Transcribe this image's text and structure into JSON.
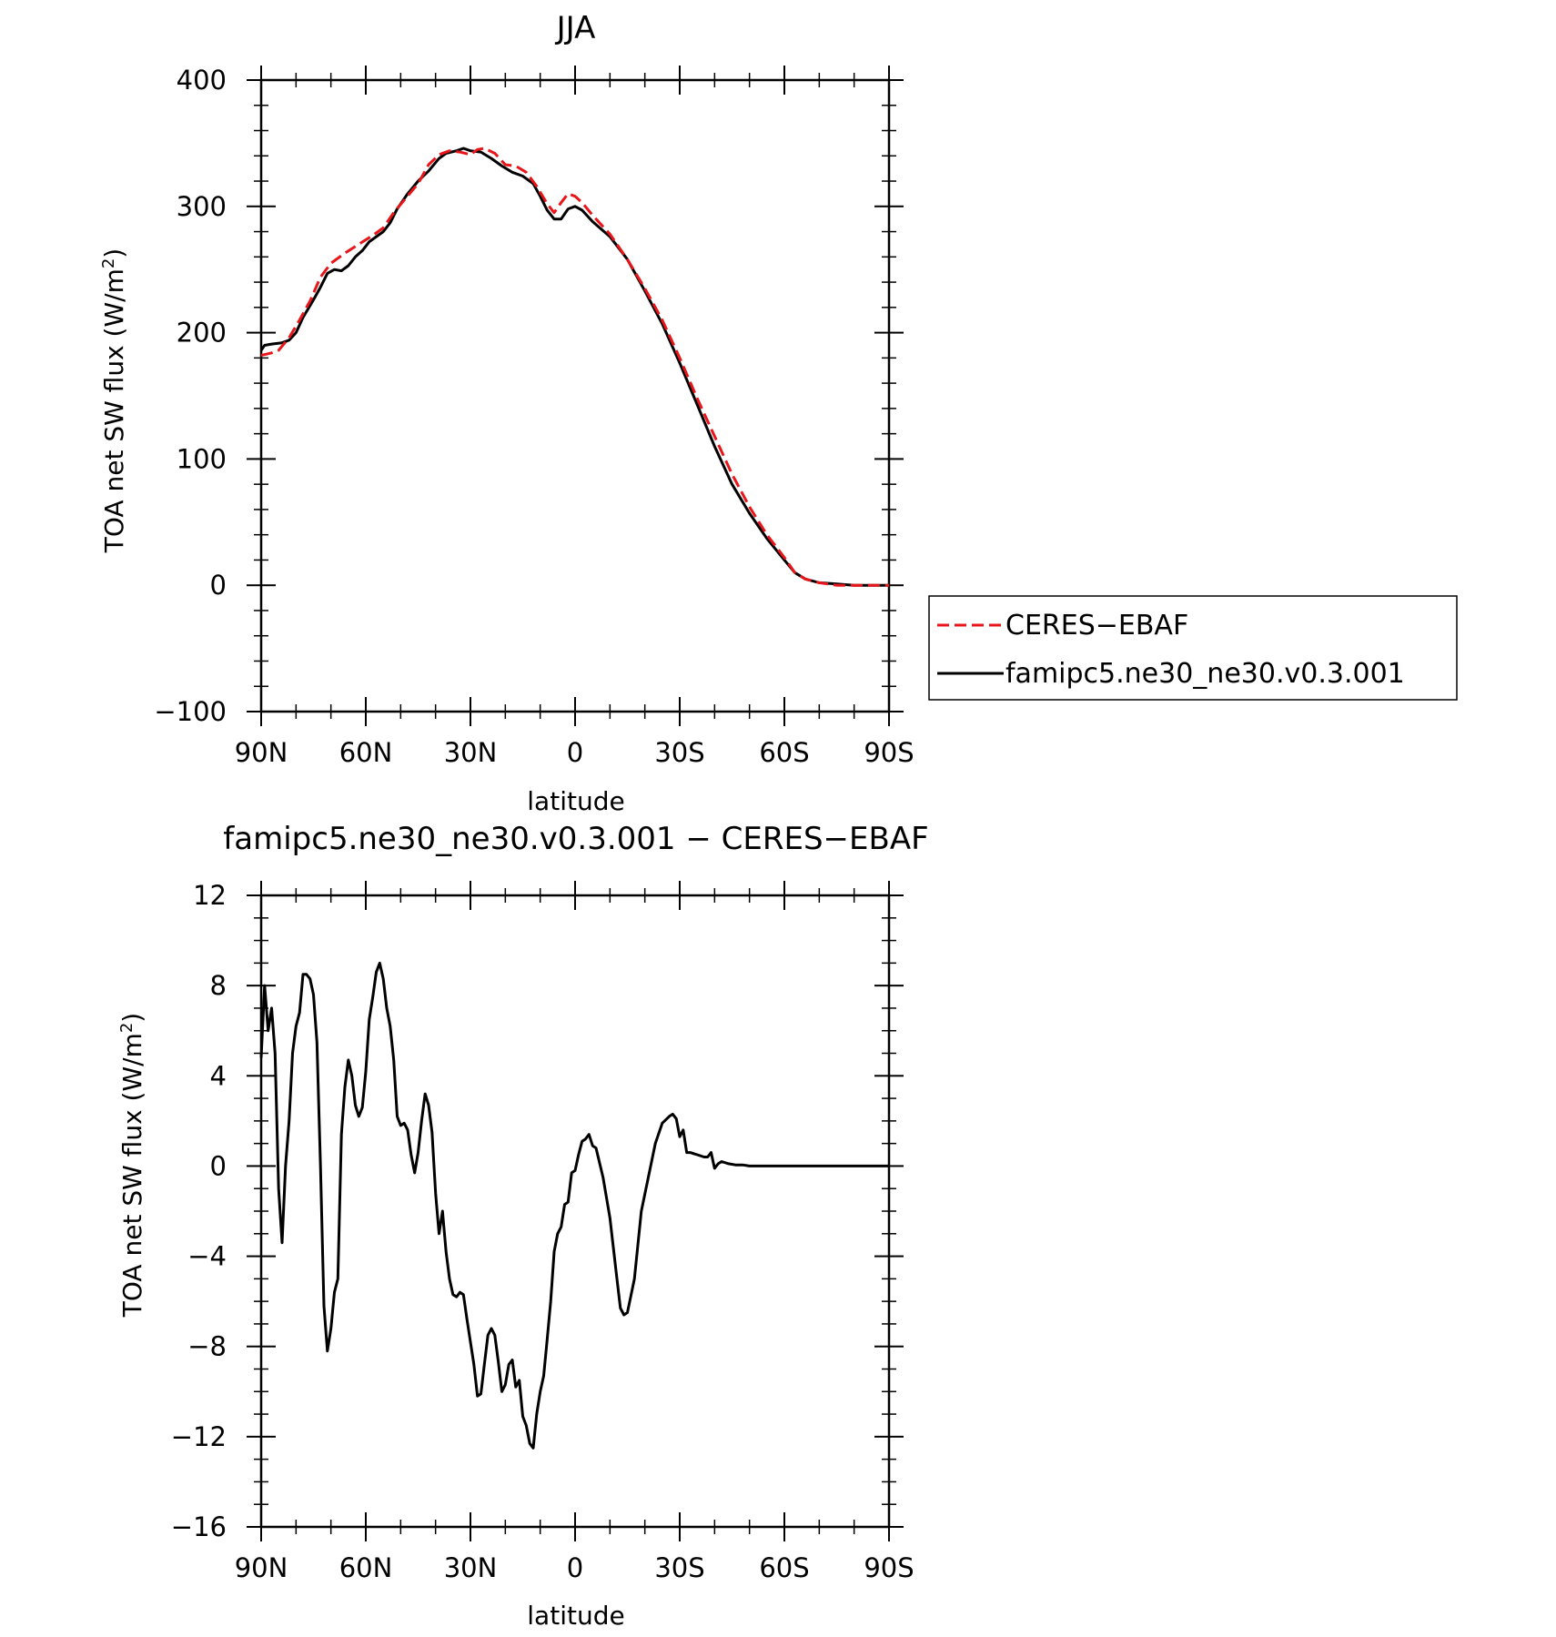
{
  "chart_data": [
    {
      "type": "line",
      "title": "JJA",
      "xlabel": "latitude",
      "ylabel": "TOA net SW flux (W/m",
      "ylabel_sup": "2",
      "ylabel_end": ")",
      "xlim": [
        90,
        -90
      ],
      "ylim": [
        -100,
        400
      ],
      "xticks": [
        90,
        60,
        30,
        0,
        -30,
        -60,
        -90
      ],
      "xtick_labels": [
        "90N",
        "60N",
        "30N",
        "0",
        "30S",
        "60S",
        "90S"
      ],
      "yticks": [
        -100,
        0,
        100,
        200,
        300,
        400
      ],
      "ytick_labels": [
        "−100",
        "0",
        "100",
        "200",
        "300",
        "400"
      ],
      "legend": {
        "placement": "right",
        "entries": [
          "CERES−EBAF",
          "famipc5.ne30_ne30.v0.3.001"
        ]
      },
      "series": [
        {
          "name": "CERES−EBAF",
          "color": "#e8161a",
          "dash": "dashed",
          "points": [
            [
              90,
              182
            ],
            [
              87,
              184
            ],
            [
              85,
              186
            ],
            [
              82,
              196
            ],
            [
              79,
              210
            ],
            [
              76,
              225
            ],
            [
              73,
              244
            ],
            [
              70,
              255
            ],
            [
              66,
              263
            ],
            [
              62,
              270
            ],
            [
              58,
              277
            ],
            [
              55,
              283
            ],
            [
              52,
              295
            ],
            [
              49,
              305
            ],
            [
              45,
              318
            ],
            [
              42,
              333
            ],
            [
              39,
              341
            ],
            [
              36,
              344
            ],
            [
              33,
              343
            ],
            [
              30,
              341
            ],
            [
              28,
              345
            ],
            [
              26,
              346
            ],
            [
              23,
              342
            ],
            [
              20,
              333
            ],
            [
              17,
              332
            ],
            [
              14,
              327
            ],
            [
              11,
              316
            ],
            [
              8,
              302
            ],
            [
              6,
              295
            ],
            [
              4,
              303
            ],
            [
              2,
              310
            ],
            [
              0,
              308
            ],
            [
              -2,
              303
            ],
            [
              -5,
              293
            ],
            [
              -10,
              278
            ],
            [
              -15,
              258
            ],
            [
              -20,
              235
            ],
            [
              -25,
              210
            ],
            [
              -30,
              180
            ],
            [
              -35,
              148
            ],
            [
              -40,
              118
            ],
            [
              -45,
              88
            ],
            [
              -50,
              62
            ],
            [
              -55,
              40
            ],
            [
              -60,
              22
            ],
            [
              -63,
              10
            ],
            [
              -66,
              5
            ],
            [
              -70,
              2
            ],
            [
              -75,
              0
            ],
            [
              -80,
              0
            ],
            [
              -85,
              0
            ],
            [
              -90,
              0
            ]
          ]
        },
        {
          "name": "famipc5.ne30_ne30.v0.3.001",
          "color": "#000000",
          "dash": "solid",
          "points": [
            [
              90,
              186
            ],
            [
              89,
              190
            ],
            [
              87,
              191
            ],
            [
              84,
              192
            ],
            [
              82,
              194
            ],
            [
              80,
              200
            ],
            [
              78,
              212
            ],
            [
              75,
              226
            ],
            [
              73,
              236
            ],
            [
              71,
              247
            ],
            [
              69,
              250
            ],
            [
              67,
              249
            ],
            [
              65,
              253
            ],
            [
              63,
              260
            ],
            [
              61,
              265
            ],
            [
              59,
              272
            ],
            [
              57,
              276
            ],
            [
              55,
              280
            ],
            [
              53,
              287
            ],
            [
              51,
              298
            ],
            [
              48,
              310
            ],
            [
              45,
              320
            ],
            [
              42,
              328
            ],
            [
              39,
              338
            ],
            [
              37,
              342
            ],
            [
              34,
              344
            ],
            [
              32,
              346
            ],
            [
              30,
              344
            ],
            [
              27,
              343
            ],
            [
              24,
              338
            ],
            [
              21,
              332
            ],
            [
              18,
              327
            ],
            [
              15,
              324
            ],
            [
              12,
              318
            ],
            [
              10,
              308
            ],
            [
              8,
              297
            ],
            [
              6,
              290
            ],
            [
              4,
              290
            ],
            [
              2,
              298
            ],
            [
              0,
              300
            ],
            [
              -2,
              297
            ],
            [
              -5,
              288
            ],
            [
              -10,
              276
            ],
            [
              -15,
              258
            ],
            [
              -20,
              233
            ],
            [
              -25,
              207
            ],
            [
              -30,
              176
            ],
            [
              -35,
              143
            ],
            [
              -40,
              110
            ],
            [
              -45,
              80
            ],
            [
              -50,
              57
            ],
            [
              -55,
              37
            ],
            [
              -60,
              20
            ],
            [
              -63,
              10
            ],
            [
              -66,
              5
            ],
            [
              -70,
              2
            ],
            [
              -75,
              1
            ],
            [
              -80,
              0
            ],
            [
              -85,
              0
            ],
            [
              -90,
              0
            ]
          ]
        }
      ]
    },
    {
      "type": "line",
      "title": "famipc5.ne30_ne30.v0.3.001 − CERES−EBAF",
      "xlabel": "latitude",
      "ylabel": "TOA net SW flux (W/m",
      "ylabel_sup": "2",
      "ylabel_end": ")",
      "xlim": [
        90,
        -90
      ],
      "ylim": [
        -16,
        12
      ],
      "xticks": [
        90,
        60,
        30,
        0,
        -30,
        -60,
        -90
      ],
      "xtick_labels": [
        "90N",
        "60N",
        "30N",
        "0",
        "30S",
        "60S",
        "90S"
      ],
      "yticks": [
        -16,
        -12,
        -8,
        -4,
        0,
        4,
        8,
        12
      ],
      "ytick_labels": [
        "−16",
        "−12",
        "−8",
        "−4",
        "0",
        "4",
        "8",
        "12"
      ],
      "series": [
        {
          "color": "#000000",
          "dash": "solid",
          "points": [
            [
              90,
              4.8
            ],
            [
              89,
              8.0
            ],
            [
              88,
              6.0
            ],
            [
              87,
              7.0
            ],
            [
              86,
              5.0
            ],
            [
              85,
              -1.0
            ],
            [
              84,
              -3.4
            ],
            [
              83,
              0.0
            ],
            [
              82,
              2.0
            ],
            [
              81,
              5.0
            ],
            [
              80,
              6.2
            ],
            [
              79,
              6.8
            ],
            [
              78,
              8.5
            ],
            [
              77,
              8.5
            ],
            [
              76,
              8.3
            ],
            [
              75,
              7.6
            ],
            [
              74,
              5.5
            ],
            [
              73,
              0.0
            ],
            [
              72,
              -6.2
            ],
            [
              71,
              -8.2
            ],
            [
              70,
              -7.2
            ],
            [
              69,
              -5.6
            ],
            [
              68,
              -5.0
            ],
            [
              67,
              1.4
            ],
            [
              66,
              3.5
            ],
            [
              65,
              4.7
            ],
            [
              64,
              4.0
            ],
            [
              63,
              2.7
            ],
            [
              62,
              2.2
            ],
            [
              61,
              2.6
            ],
            [
              60,
              4.2
            ],
            [
              59,
              6.5
            ],
            [
              58,
              7.5
            ],
            [
              57,
              8.6
            ],
            [
              56,
              9.0
            ],
            [
              55,
              8.3
            ],
            [
              54,
              7.0
            ],
            [
              53,
              6.2
            ],
            [
              52,
              4.7
            ],
            [
              51,
              2.2
            ],
            [
              50,
              1.8
            ],
            [
              49,
              1.9
            ],
            [
              48,
              1.6
            ],
            [
              47,
              0.5
            ],
            [
              46,
              -0.3
            ],
            [
              45,
              0.6
            ],
            [
              44,
              2.0
            ],
            [
              43,
              3.2
            ],
            [
              42,
              2.7
            ],
            [
              41,
              1.5
            ],
            [
              40,
              -1.2
            ],
            [
              39,
              -3.0
            ],
            [
              38,
              -2.0
            ],
            [
              37,
              -3.8
            ],
            [
              36,
              -5.0
            ],
            [
              35,
              -5.7
            ],
            [
              34,
              -5.8
            ],
            [
              33,
              -5.6
            ],
            [
              32,
              -5.7
            ],
            [
              31,
              -6.8
            ],
            [
              30,
              -7.8
            ],
            [
              29,
              -8.8
            ],
            [
              28,
              -10.2
            ],
            [
              27,
              -10.1
            ],
            [
              26,
              -8.8
            ],
            [
              25,
              -7.5
            ],
            [
              24,
              -7.2
            ],
            [
              23,
              -7.5
            ],
            [
              22,
              -8.7
            ],
            [
              21,
              -10.0
            ],
            [
              20,
              -9.7
            ],
            [
              19,
              -8.8
            ],
            [
              18,
              -8.6
            ],
            [
              17,
              -9.8
            ],
            [
              16,
              -9.5
            ],
            [
              15,
              -11.1
            ],
            [
              14,
              -11.5
            ],
            [
              13,
              -12.3
            ],
            [
              12,
              -12.5
            ],
            [
              11,
              -11.0
            ],
            [
              10,
              -10.0
            ],
            [
              9,
              -9.3
            ],
            [
              8,
              -7.7
            ],
            [
              7,
              -6.0
            ],
            [
              6,
              -3.8
            ],
            [
              5,
              -3.0
            ],
            [
              4,
              -2.7
            ],
            [
              3,
              -1.7
            ],
            [
              2,
              -1.6
            ],
            [
              1,
              -0.3
            ],
            [
              0,
              -0.2
            ],
            [
              -1,
              0.5
            ],
            [
              -2,
              1.1
            ],
            [
              -3,
              1.2
            ],
            [
              -4,
              1.4
            ],
            [
              -5,
              0.9
            ],
            [
              -6,
              0.8
            ],
            [
              -8,
              -0.5
            ],
            [
              -10,
              -2.3
            ],
            [
              -12,
              -5.0
            ],
            [
              -13,
              -6.3
            ],
            [
              -14,
              -6.6
            ],
            [
              -15,
              -6.5
            ],
            [
              -17,
              -5.0
            ],
            [
              -19,
              -2.0
            ],
            [
              -21,
              -0.5
            ],
            [
              -23,
              1.0
            ],
            [
              -25,
              1.9
            ],
            [
              -27,
              2.2
            ],
            [
              -28,
              2.3
            ],
            [
              -29,
              2.1
            ],
            [
              -30,
              1.3
            ],
            [
              -31,
              1.6
            ],
            [
              -32,
              0.6
            ],
            [
              -33,
              0.6
            ],
            [
              -35,
              0.5
            ],
            [
              -37,
              0.4
            ],
            [
              -38,
              0.4
            ],
            [
              -39,
              0.6
            ],
            [
              -40,
              -0.1
            ],
            [
              -41,
              0.1
            ],
            [
              -42,
              0.2
            ],
            [
              -44,
              0.1
            ],
            [
              -46,
              0.05
            ],
            [
              -48,
              0.05
            ],
            [
              -50,
              0.0
            ],
            [
              -53,
              0.0
            ],
            [
              -56,
              0.0
            ],
            [
              -60,
              0.0
            ],
            [
              -65,
              0.0
            ],
            [
              -70,
              0.0
            ],
            [
              -75,
              0.0
            ],
            [
              -80,
              0.0
            ],
            [
              -85,
              0.0
            ],
            [
              -90,
              0.0
            ]
          ]
        }
      ]
    }
  ]
}
